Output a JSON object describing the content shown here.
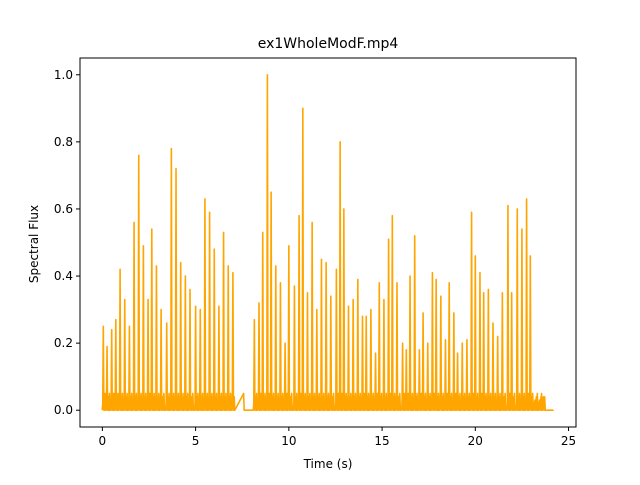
{
  "chart_data": {
    "type": "line",
    "title": "ex1WholeModF.mp4",
    "xlabel": "Time (s)",
    "ylabel": "Spectral Flux",
    "xlim": [
      -1.2,
      25.4
    ],
    "ylim": [
      -0.05,
      1.05
    ],
    "x_ticks": [
      0,
      5,
      10,
      15,
      20,
      25
    ],
    "x_tick_labels": [
      "0",
      "5",
      "10",
      "15",
      "20",
      "25"
    ],
    "y_ticks": [
      0.0,
      0.2,
      0.4,
      0.6,
      0.8,
      1.0
    ],
    "y_tick_labels": [
      "0.0",
      "0.2",
      "0.4",
      "0.6",
      "0.8",
      "1.0"
    ],
    "grid": false,
    "legend": "none",
    "line_color": "#ffa500",
    "series": [
      {
        "peaks": [
          [
            0.05,
            0.25
          ],
          [
            0.25,
            0.19
          ],
          [
            0.5,
            0.24
          ],
          [
            0.72,
            0.27
          ],
          [
            0.95,
            0.42
          ],
          [
            1.2,
            0.33
          ],
          [
            1.45,
            0.25
          ],
          [
            1.7,
            0.56
          ],
          [
            1.95,
            0.76
          ],
          [
            2.2,
            0.49
          ],
          [
            2.45,
            0.33
          ],
          [
            2.65,
            0.54
          ],
          [
            2.9,
            0.43
          ],
          [
            3.15,
            0.3
          ],
          [
            3.45,
            0.26
          ],
          [
            3.7,
            0.78
          ],
          [
            3.95,
            0.72
          ],
          [
            4.2,
            0.44
          ],
          [
            4.45,
            0.4
          ],
          [
            4.7,
            0.36
          ],
          [
            5.0,
            0.31
          ],
          [
            5.25,
            0.3
          ],
          [
            5.5,
            0.63
          ],
          [
            5.75,
            0.59
          ],
          [
            6.0,
            0.48
          ],
          [
            6.25,
            0.31
          ],
          [
            6.5,
            0.53
          ],
          [
            6.75,
            0.43
          ],
          [
            7.0,
            0.41
          ],
          [
            8.15,
            0.27
          ],
          [
            8.4,
            0.32
          ],
          [
            8.6,
            0.53
          ],
          [
            8.85,
            1.0
          ],
          [
            9.05,
            0.65
          ],
          [
            9.3,
            0.43
          ],
          [
            9.55,
            0.38
          ],
          [
            9.8,
            0.2
          ],
          [
            10.0,
            0.49
          ],
          [
            10.3,
            0.37
          ],
          [
            10.55,
            0.58
          ],
          [
            10.75,
            0.9
          ],
          [
            11.0,
            0.35
          ],
          [
            11.25,
            0.56
          ],
          [
            11.5,
            0.3
          ],
          [
            11.75,
            0.45
          ],
          [
            12.0,
            0.44
          ],
          [
            12.25,
            0.34
          ],
          [
            12.55,
            0.42
          ],
          [
            12.75,
            0.8
          ],
          [
            12.95,
            0.6
          ],
          [
            13.2,
            0.31
          ],
          [
            13.45,
            0.33
          ],
          [
            13.7,
            0.39
          ],
          [
            13.95,
            0.28
          ],
          [
            14.15,
            0.28
          ],
          [
            14.4,
            0.3
          ],
          [
            14.65,
            0.17
          ],
          [
            14.85,
            0.38
          ],
          [
            15.1,
            0.33
          ],
          [
            15.35,
            0.51
          ],
          [
            15.55,
            0.58
          ],
          [
            15.8,
            0.38
          ],
          [
            16.1,
            0.2
          ],
          [
            16.3,
            0.18
          ],
          [
            16.5,
            0.4
          ],
          [
            16.75,
            0.52
          ],
          [
            17.0,
            0.18
          ],
          [
            17.2,
            0.29
          ],
          [
            17.45,
            0.2
          ],
          [
            17.7,
            0.41
          ],
          [
            17.9,
            0.39
          ],
          [
            18.15,
            0.34
          ],
          [
            18.4,
            0.21
          ],
          [
            18.6,
            0.38
          ],
          [
            18.85,
            0.29
          ],
          [
            19.05,
            0.17
          ],
          [
            19.3,
            0.2
          ],
          [
            19.55,
            0.21
          ],
          [
            19.8,
            0.59
          ],
          [
            20.0,
            0.46
          ],
          [
            20.25,
            0.41
          ],
          [
            20.45,
            0.35
          ],
          [
            20.7,
            0.36
          ],
          [
            20.95,
            0.26
          ],
          [
            21.2,
            0.22
          ],
          [
            21.45,
            0.35
          ],
          [
            21.75,
            0.61
          ],
          [
            21.95,
            0.35
          ],
          [
            22.25,
            0.6
          ],
          [
            22.5,
            0.54
          ],
          [
            22.75,
            0.63
          ],
          [
            22.95,
            0.46
          ],
          [
            23.2,
            0.03
          ],
          [
            23.45,
            0.03
          ],
          [
            23.65,
            0.04
          ]
        ],
        "data_end": 24.2
      }
    ]
  }
}
